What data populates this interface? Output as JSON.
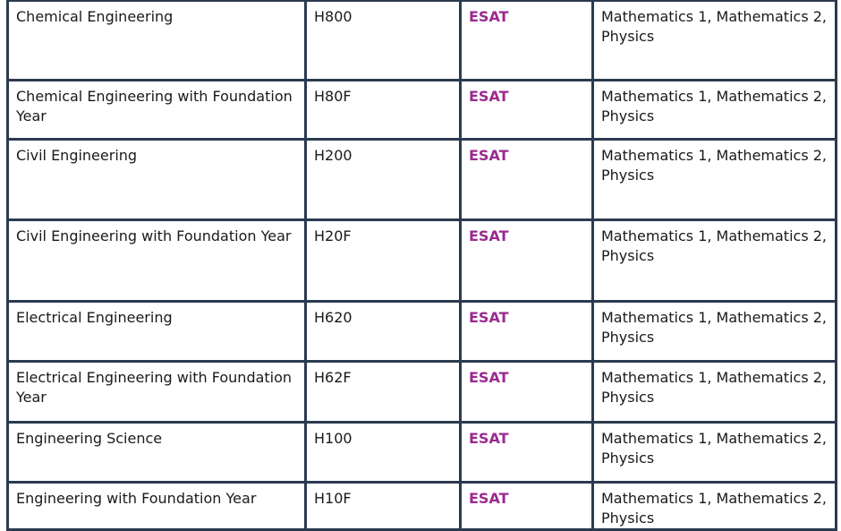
{
  "table": {
    "rows": [
      [
        "Chemical Engineering",
        "H800",
        "ESAT",
        "Mathematics 1, Mathematics 2, Physics"
      ],
      [
        "Chemical Engineering with Foundation Year",
        "H80F",
        "ESAT",
        "Mathematics 1, Mathematics 2, Physics"
      ],
      [
        "Civil Engineering",
        "H200",
        "ESAT",
        "Mathematics 1, Mathematics 2, Physics"
      ],
      [
        "Civil Engineering with Foundation Year",
        "H20F",
        "ESAT",
        "Mathematics 1, Mathematics 2, Physics"
      ],
      [
        "Electrical Engineering",
        "H620",
        "ESAT",
        "Mathematics 1, Mathematics 2, Physics"
      ],
      [
        "Electrical Engineering with Foundation Year",
        "H62F",
        "ESAT",
        "Mathematics 1, Mathematics 2, Physics"
      ],
      [
        "Engineering Science",
        "H100",
        "ESAT",
        "Mathematics 1, Mathematics 2, Physics"
      ],
      [
        "Engineering with Foundation Year",
        "H10F",
        "ESAT",
        "Mathematics 1, Mathematics 2, Physics"
      ]
    ]
  }
}
